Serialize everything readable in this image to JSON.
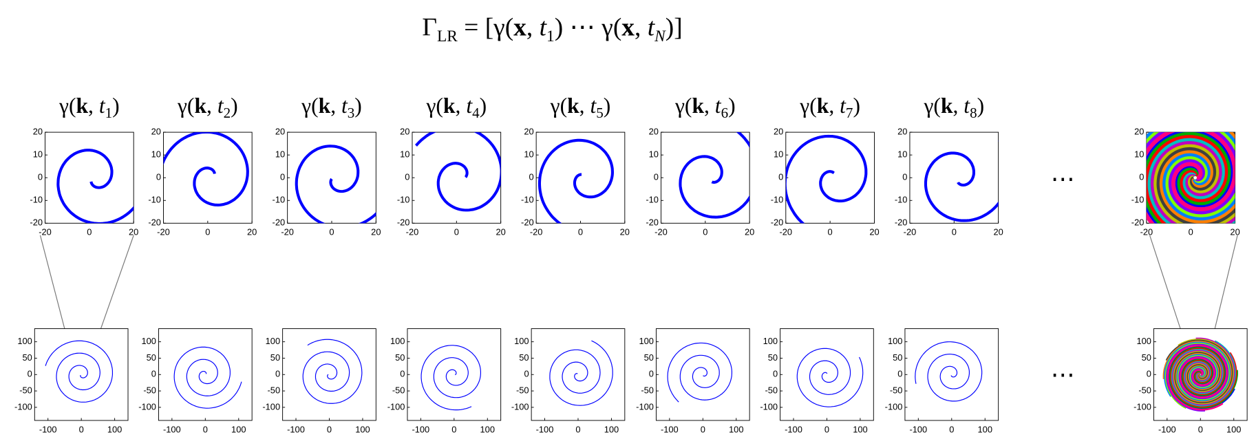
{
  "formula": [
    "Γ",
    "LR",
    " = [γ(",
    "x",
    ", ",
    "t",
    "1",
    ") ⋯ γ(",
    "x",
    ", ",
    "t",
    "N",
    ")]"
  ],
  "label_parts": {
    "open": "γ(",
    "k": "k",
    "sep": ", ",
    "t": "t",
    "close": ")"
  },
  "subscripts": [
    "1",
    "2",
    "3",
    "4",
    "5",
    "6",
    "7",
    "8"
  ],
  "ellipsis": "⋯",
  "top_axes": {
    "xlim": [
      -20,
      20
    ],
    "ylim": [
      -20,
      20
    ],
    "xticks": [
      -20,
      0,
      20
    ],
    "yticks": [
      20,
      10,
      0,
      -10,
      -20
    ]
  },
  "bottom_axes": {
    "xlim": [
      -140,
      140
    ],
    "ylim": [
      -140,
      140
    ],
    "xticks": [
      -100,
      0,
      100
    ],
    "yticks": [
      100,
      50,
      0,
      -50,
      -100
    ]
  },
  "spiral_color": "#0000ff",
  "mix_colors": [
    "#0000ff",
    "#00aa00",
    "#ff0000",
    "#00bfbf",
    "#bf00bf",
    "#bfbf00",
    "#404040",
    "#ff8000",
    "#0080ff",
    "#80ff00",
    "#8000ff",
    "#ff0080"
  ]
}
